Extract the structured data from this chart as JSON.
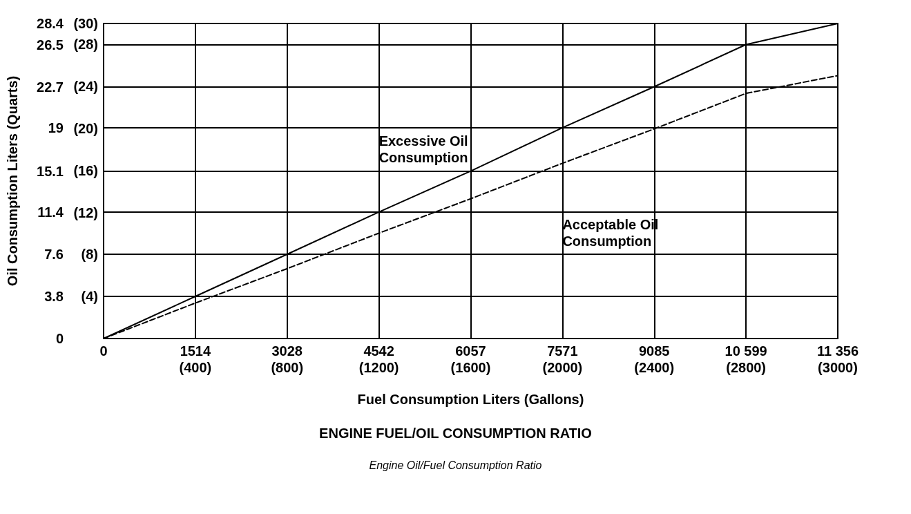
{
  "chart_data": {
    "type": "line",
    "title": "ENGINE FUEL/OIL CONSUMPTION RATIO",
    "subtitle": "Engine Oil/Fuel Consumption Ratio",
    "xlabel": "Fuel Consumption Liters (Gallons)",
    "ylabel": "Oil Consumption Liters (Quarts)",
    "categories": [
      "0",
      "1514\n(400)",
      "3028\n(800)",
      "4542\n(1200)",
      "6057\n(1600)",
      "7571\n(2000)",
      "9085\n(2400)",
      "10 599\n(2800)",
      "11 356\n(3000)"
    ],
    "series": [
      {
        "color": "#000000",
        "line_style": "solid",
        "values": [
          0,
          3.8,
          7.6,
          11.4,
          15.1,
          19,
          22.7,
          26.5,
          28.4
        ]
      },
      {
        "color": "#000000",
        "line_style": "dashed",
        "values": [
          0,
          3.2,
          6.3,
          9.5,
          12.6,
          15.8,
          18.9,
          22.1,
          23.7
        ]
      }
    ],
    "ylim": [
      0,
      28.4
    ],
    "yticks": [
      0,
      3.8,
      7.6,
      11.4,
      15.1,
      19,
      22.7,
      26.5,
      28.4
    ],
    "y2lim": [
      0,
      30
    ],
    "y2ticks": [
      {
        "value": 4,
        "label": "(4)"
      },
      {
        "value": 8,
        "label": "(8)"
      },
      {
        "value": 12,
        "label": "(12)"
      },
      {
        "value": 16,
        "label": "(16)"
      },
      {
        "value": 20,
        "label": "(20)"
      },
      {
        "value": 24,
        "label": "(24)"
      },
      {
        "value": 28,
        "label": "(28)"
      },
      {
        "value": 30,
        "label": "(30)"
      }
    ],
    "grid": true,
    "marker": "none",
    "annotations": [
      "Excessive Oil Consumption",
      "Acceptable Oil Consumption"
    ]
  }
}
